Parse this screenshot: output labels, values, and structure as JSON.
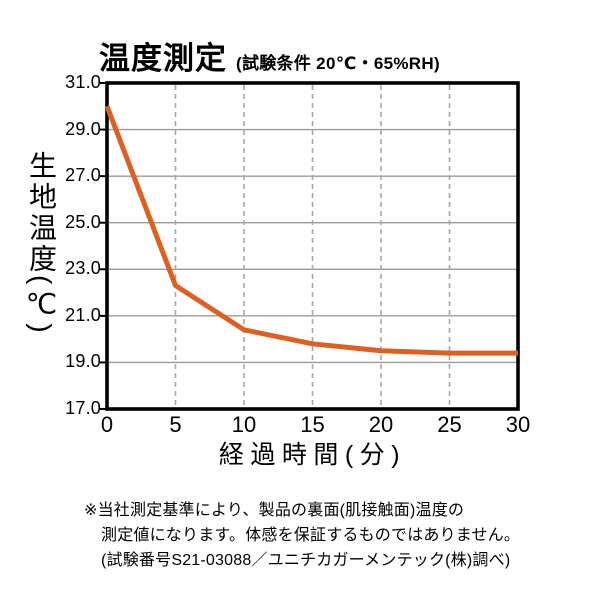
{
  "header": {
    "title": "温度測定",
    "subtitle": "(試験条件 20℃・65%RH)"
  },
  "chart_data": {
    "type": "line",
    "title": "温度測定",
    "subtitle": "(試験条件 20℃・65%RH)",
    "xlabel": "経過時間(分)",
    "ylabel": "生地温度(℃)",
    "x": [
      0,
      5,
      10,
      15,
      20,
      25,
      30
    ],
    "values": [
      30.0,
      22.3,
      20.4,
      19.8,
      19.5,
      19.4,
      19.4
    ],
    "xlim": [
      0,
      30
    ],
    "ylim": [
      17.0,
      31.0
    ],
    "xticks": [
      0,
      5,
      10,
      15,
      20,
      25,
      30
    ],
    "xtick_labels": [
      "0",
      "5",
      "10",
      "15",
      "20",
      "25",
      "30"
    ],
    "yticks": [
      31.0,
      29.0,
      27.0,
      25.0,
      23.0,
      21.0,
      19.0,
      17.0
    ],
    "ytick_labels": [
      "31.0",
      "29.0",
      "27.0",
      "25.0",
      "23.0",
      "21.0",
      "19.0",
      "17.0"
    ],
    "grid": {
      "horizontal": "solid",
      "vertical": "dashed"
    },
    "legend": "none",
    "line_color": "#dd5f22",
    "frame_color": "#000000",
    "h_gridline_color": "#999999",
    "v_gridline_color": "#a6a6a6"
  },
  "footnote": {
    "lines": [
      "※当社測定基準により、製品の裏面(肌接触面)温度の",
      "測定値になります。体感を保証するものではありません。",
      "(試験番号S21-03088／ユニチカガーメンテック(株)調べ)"
    ]
  }
}
